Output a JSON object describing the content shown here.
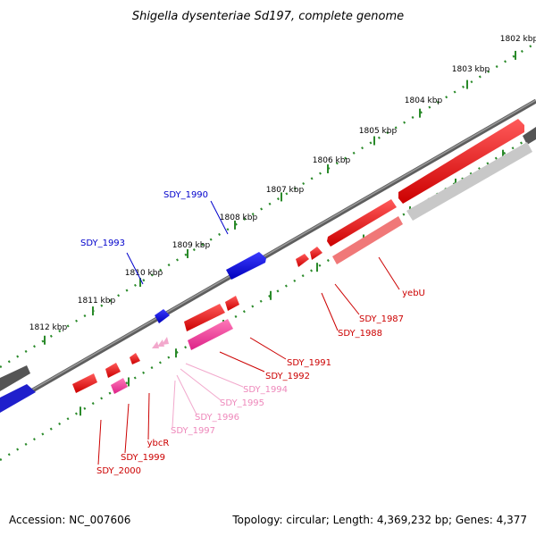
{
  "title": "Shigella dysenteriae Sd197, complete genome",
  "footer": {
    "accession": "Accession: NC_007606",
    "summary": "Topology: circular; Length: 4,369,232 bp; Genes: 4,377"
  },
  "scale_labels": [
    "1802 kbp",
    "1803 kbp",
    "1804 kbp",
    "1805 kbp",
    "1806 kbp",
    "1807 kbp",
    "1808 kbp",
    "1809 kbp",
    "1810 kbp",
    "1811 kbp",
    "1812 kbp"
  ],
  "genes": [
    {
      "name": "SDY_1990",
      "color": "#0000cc"
    },
    {
      "name": "SDY_1993",
      "color": "#0000cc"
    },
    {
      "name": "yebU",
      "color": "#cc0000"
    },
    {
      "name": "SDY_1987",
      "color": "#cc0000"
    },
    {
      "name": "SDY_1988",
      "color": "#cc0000"
    },
    {
      "name": "SDY_1991",
      "color": "#cc0000"
    },
    {
      "name": "SDY_1992",
      "color": "#cc0000"
    },
    {
      "name": "SDY_1994",
      "color": "#ee88bb"
    },
    {
      "name": "SDY_1995",
      "color": "#ee88bb"
    },
    {
      "name": "SDY_1996",
      "color": "#ee88bb"
    },
    {
      "name": "SDY_1997",
      "color": "#ee88bb"
    },
    {
      "name": "ybcR",
      "color": "#cc0000"
    },
    {
      "name": "SDY_1999",
      "color": "#cc0000"
    },
    {
      "name": "SDY_2000",
      "color": "#cc0000"
    }
  ]
}
